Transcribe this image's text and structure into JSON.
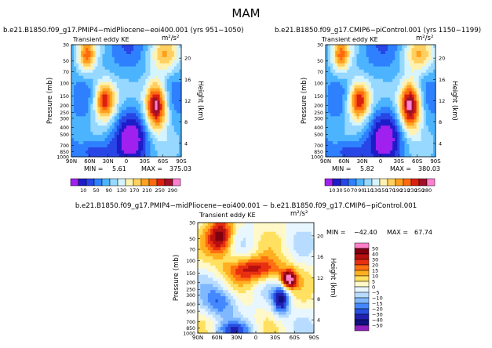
{
  "page": {
    "title": "MAM",
    "subtitle": "b.e21.B1850.f09_g17.PMIP4−midPliocene−eoi400.001 − b.e21.B1850.f09_g17.CMIP6−piControl.001"
  },
  "colors": {
    "abs_scale": [
      "#a020f0",
      "#1c1cc8",
      "#2846e6",
      "#2e80ff",
      "#4cb4ff",
      "#96d8ff",
      "#d4f4ff",
      "#fff2b0",
      "#ffd060",
      "#ffa020",
      "#ff6a10",
      "#dc2010",
      "#a01028",
      "#ff80d0"
    ],
    "diff_scale": [
      "#9020c0",
      "#101080",
      "#2020b0",
      "#2850e0",
      "#4488ff",
      "#80b8ff",
      "#b8dcff",
      "#e8f6ff",
      "#fff8c8",
      "#ffe060",
      "#ffb020",
      "#ff7010",
      "#e83010",
      "#b81010",
      "#800010",
      "#ff80c8"
    ]
  },
  "chart_data": [
    {
      "type": "heatmap",
      "title": "b.e21.B1850.f09_g17.PMIP4−midPliocene−eoi400.001 (yrs 951−1050)",
      "panel_label": "Transient eddy KE",
      "units": "m²/s²",
      "ylabel": "Pressure (mb)",
      "y2label": "Height (km)",
      "x_ticks": [
        "90N",
        "60N",
        "30N",
        "0",
        "30S",
        "60S",
        "90S"
      ],
      "y_ticks": [
        "30",
        "50",
        "70",
        "100",
        "150",
        "200",
        "250",
        "300",
        "400",
        "500",
        "700",
        "850",
        "1000"
      ],
      "y_ticks_values": [
        30,
        50,
        70,
        100,
        150,
        200,
        250,
        300,
        400,
        500,
        700,
        850,
        1000
      ],
      "y2_ticks": [
        "20",
        "16",
        "12",
        "8",
        "4"
      ],
      "min_label": "MIN =",
      "min": "5.61",
      "max_label": "MAX =",
      "max": "375.03",
      "colorbar_labels": [
        "10",
        "50",
        "90",
        "130",
        "170",
        "210",
        "250",
        "290"
      ]
    },
    {
      "type": "heatmap",
      "title": "b.e21.B1850.f09_g17.CMIP6−piControl.001 (yrs 1150−1199)",
      "panel_label": "Transient eddy KE",
      "units": "m²/s²",
      "ylabel": "Pressure (mb)",
      "y2label": "Height (km)",
      "x_ticks": [
        "90N",
        "60N",
        "30N",
        "0",
        "30S",
        "60S",
        "90S"
      ],
      "y_ticks": [
        "30",
        "50",
        "70",
        "100",
        "150",
        "200",
        "250",
        "300",
        "400",
        "500",
        "700",
        "850",
        "1000"
      ],
      "y_ticks_values": [
        30,
        50,
        70,
        100,
        150,
        200,
        250,
        300,
        400,
        500,
        700,
        850,
        1000
      ],
      "y2_ticks": [
        "20",
        "16",
        "12",
        "8",
        "4"
      ],
      "min_label": "MIN =",
      "min": "5.82",
      "max_label": "MAX =",
      "max": "380.03",
      "colorbar_labels": [
        "10",
        "30",
        "50",
        "70",
        "90",
        "110",
        "130",
        "150",
        "170",
        "190",
        "210",
        "230",
        "250",
        "280"
      ]
    },
    {
      "type": "heatmap",
      "panel_label": "Transient eddy KE",
      "units": "m²/s²",
      "ylabel": "Pressure (mb)",
      "y2label": "Height (km)",
      "x_ticks": [
        "90N",
        "60N",
        "30N",
        "0",
        "30S",
        "60S",
        "90S"
      ],
      "y_ticks": [
        "30",
        "50",
        "70",
        "100",
        "150",
        "200",
        "250",
        "300",
        "400",
        "500",
        "700",
        "850",
        "1000"
      ],
      "y_ticks_values": [
        30,
        50,
        70,
        100,
        150,
        200,
        250,
        300,
        400,
        500,
        700,
        850,
        1000
      ],
      "y2_ticks": [
        "20",
        "16",
        "12",
        "8",
        "4"
      ],
      "min_label": "MIN =",
      "min": "−42.40",
      "max_label": "MAX =",
      "max": "67.74",
      "colorbar_labels": [
        "50",
        "40",
        "30",
        "20",
        "15",
        "10",
        "5",
        "0",
        "−5",
        "−10",
        "−15",
        "−20",
        "−30",
        "−40",
        "−50"
      ]
    }
  ]
}
